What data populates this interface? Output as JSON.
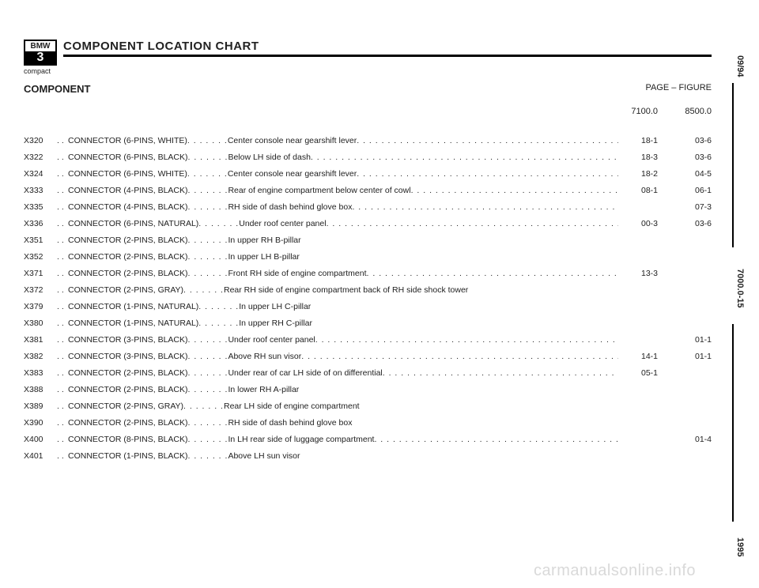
{
  "header": {
    "brand_top": "BMW",
    "brand_mid": "3",
    "compact": "compact",
    "title": "COMPONENT LOCATION CHART",
    "subhead": "COMPONENT",
    "col_page": "PAGE",
    "col_dash": " – ",
    "col_figure": "FIGURE",
    "col_page_sub": "7100.0",
    "col_figure_sub": "8500.0"
  },
  "side": {
    "date": "09/94",
    "section": "7000.0-15",
    "year": "1995"
  },
  "rows": [
    {
      "code": "X320",
      "name": "CONNECTOR (6-PINS, WHITE)",
      "loc": "Center console near gearshift lever",
      "page": "18-1",
      "fig": "03-6"
    },
    {
      "code": "X322",
      "name": "CONNECTOR (6-PINS, BLACK)",
      "loc": "Below LH side of dash",
      "page": "18-3",
      "fig": "03-6"
    },
    {
      "code": "X324",
      "name": "CONNECTOR (6-PINS, WHITE)",
      "loc": "Center console near gearshift lever",
      "page": "18-2",
      "fig": "04-5"
    },
    {
      "code": "X333",
      "name": "CONNECTOR (4-PINS, BLACK)",
      "loc": "Rear of engine compartment below center of cowl",
      "page": "08-1",
      "fig": "06-1"
    },
    {
      "code": "X335",
      "name": "CONNECTOR (4-PINS, BLACK)",
      "loc": "RH side of dash behind glove box",
      "page": "",
      "fig": "07-3"
    },
    {
      "code": "X336",
      "name": "CONNECTOR (6-PINS, NATURAL)",
      "loc": "Under roof center panel",
      "page": "00-3",
      "fig": "03-6"
    },
    {
      "code": "X351",
      "name": "CONNECTOR (2-PINS, BLACK)",
      "loc": "In upper RH B-pillar",
      "page": "",
      "fig": ""
    },
    {
      "code": "X352",
      "name": "CONNECTOR (2-PINS, BLACK)",
      "loc": "In upper LH B-pillar",
      "page": "",
      "fig": ""
    },
    {
      "code": "X371",
      "name": "CONNECTOR (2-PINS, BLACK)",
      "loc": "Front RH side of engine compartment",
      "page": "13-3",
      "fig": ""
    },
    {
      "code": "X372",
      "name": "CONNECTOR (2-PINS, GRAY)",
      "loc": "Rear RH side of engine compartment back of RH side shock tower",
      "page": "",
      "fig": ""
    },
    {
      "code": "X379",
      "name": "CONNECTOR (1-PINS, NATURAL)",
      "loc": "In upper LH C-pillar",
      "page": "",
      "fig": ""
    },
    {
      "code": "X380",
      "name": "CONNECTOR (1-PINS, NATURAL)",
      "loc": "In upper RH C-pillar",
      "page": "",
      "fig": ""
    },
    {
      "code": "X381",
      "name": "CONNECTOR (3-PINS, BLACK)",
      "loc": "Under roof center panel",
      "page": "",
      "fig": "01-1"
    },
    {
      "code": "X382",
      "name": "CONNECTOR (3-PINS, BLACK)",
      "loc": "Above RH sun visor",
      "page": "14-1",
      "fig": "01-1"
    },
    {
      "code": "X383",
      "name": "CONNECTOR (2-PINS, BLACK)",
      "loc": "Under rear of car LH side of on differential",
      "page": "05-1",
      "fig": ""
    },
    {
      "code": "X388",
      "name": "CONNECTOR (2-PINS, BLACK)",
      "loc": "In lower RH A-pillar",
      "page": "",
      "fig": ""
    },
    {
      "code": "X389",
      "name": "CONNECTOR (2-PINS, GRAY)",
      "loc": "Rear LH side of engine compartment",
      "page": "",
      "fig": ""
    },
    {
      "code": "X390",
      "name": "CONNECTOR (2-PINS, BLACK)",
      "loc": "RH side of dash behind glove box",
      "page": "",
      "fig": ""
    },
    {
      "code": "X400",
      "name": "CONNECTOR (8-PINS, BLACK)",
      "loc": "In LH rear side of luggage compartment",
      "page": "",
      "fig": "01-4"
    },
    {
      "code": "X401",
      "name": "CONNECTOR (1-PINS, BLACK)",
      "loc": "Above LH sun visor",
      "page": "",
      "fig": ""
    }
  ],
  "watermark": "carmanualsonline.info"
}
